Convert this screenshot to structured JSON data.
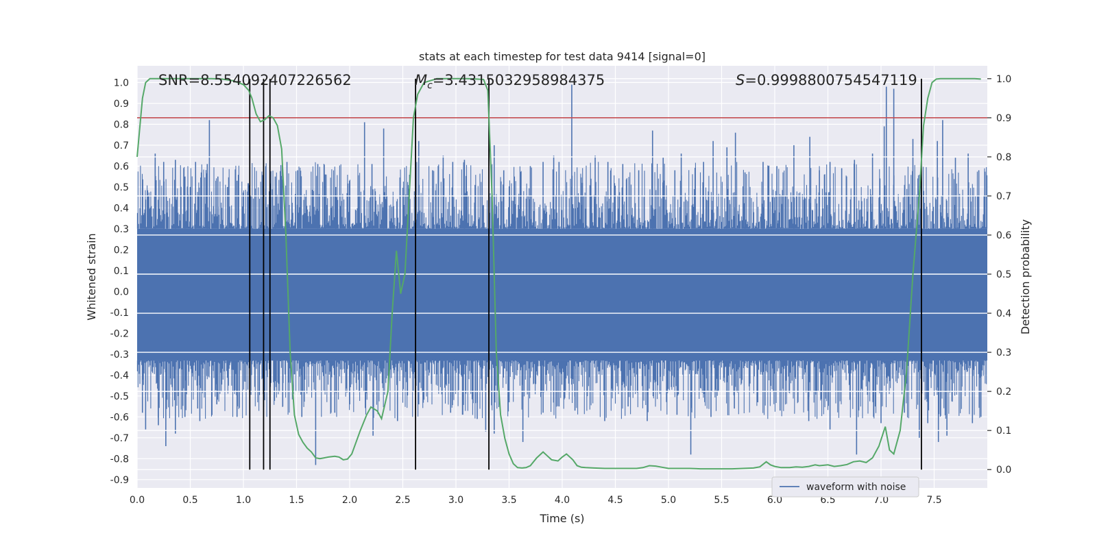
{
  "chart_data": {
    "type": "line",
    "title": "stats at each timestep for test data 9414 [signal=0]",
    "xlabel": "Time (s)",
    "ylabel": "Whitened strain",
    "y2label": "Detection probability",
    "xlim": [
      0.0,
      8.0
    ],
    "ylim": [
      -0.94,
      1.08
    ],
    "y2lim": [
      -0.047,
      1.033
    ],
    "xticks": [
      "0.0",
      "0.5",
      "1.0",
      "1.5",
      "2.0",
      "2.5",
      "3.0",
      "3.5",
      "4.0",
      "4.5",
      "5.0",
      "5.5",
      "6.0",
      "6.5",
      "7.0",
      "7.5"
    ],
    "yticks": [
      "1.0",
      "0.9",
      "0.8",
      "0.7",
      "0.6",
      "0.5",
      "0.4",
      "0.3",
      "0.2",
      "0.1",
      "0.0",
      "-0.1",
      "-0.2",
      "-0.3",
      "-0.4",
      "-0.5",
      "-0.6",
      "-0.7",
      "-0.8",
      "-0.9"
    ],
    "y2ticks": [
      "1.0",
      "0.9",
      "0.8",
      "0.7",
      "0.6",
      "0.5",
      "0.4",
      "0.3",
      "0.2",
      "0.1",
      "0.0"
    ],
    "annotations": {
      "snr": "SNR=8.554092407226562",
      "mc_symbol": "M",
      "mc_sub": "c",
      "mc_value": "=3.4315032958984375",
      "s_symbol": "S",
      "s_value": "=0.9998800754547119"
    },
    "threshold": 0.9,
    "vlines": [
      1.06,
      1.19,
      1.25,
      2.62,
      3.31,
      7.38
    ],
    "legend": {
      "label": "waveform with noise",
      "placement": "lower-right"
    },
    "series": [
      {
        "name": "waveform with noise",
        "color": "#4c72b0",
        "envelope_top": 0.3,
        "envelope_bottom": -0.33,
        "spikes": [
          [
            0.08,
            0.44
          ],
          [
            0.17,
            0.66
          ],
          [
            0.25,
            0.62
          ],
          [
            0.36,
            0.63
          ],
          [
            0.45,
            0.55
          ],
          [
            0.5,
            0.5
          ],
          [
            0.55,
            0.62
          ],
          [
            0.66,
            0.61
          ],
          [
            0.68,
            0.82
          ],
          [
            0.76,
            0.55
          ],
          [
            0.85,
            0.5
          ],
          [
            0.94,
            0.53
          ],
          [
            1.07,
            0.46
          ],
          [
            1.21,
            0.49
          ],
          [
            1.3,
            0.55
          ],
          [
            1.41,
            0.62
          ],
          [
            1.51,
            0.58
          ],
          [
            1.7,
            0.61
          ],
          [
            1.77,
            0.56
          ],
          [
            1.87,
            0.5
          ],
          [
            2.0,
            0.52
          ],
          [
            2.14,
            0.81
          ],
          [
            2.21,
            0.61
          ],
          [
            2.32,
            0.78
          ],
          [
            2.55,
            0.51
          ],
          [
            2.65,
            0.72
          ],
          [
            2.78,
            0.58
          ],
          [
            2.88,
            0.65
          ],
          [
            2.97,
            0.62
          ],
          [
            3.08,
            0.63
          ],
          [
            3.18,
            0.51
          ],
          [
            3.36,
            0.7
          ],
          [
            3.45,
            0.58
          ],
          [
            3.55,
            0.55
          ],
          [
            3.7,
            0.6
          ],
          [
            3.82,
            0.62
          ],
          [
            3.92,
            0.65
          ],
          [
            3.97,
            0.62
          ],
          [
            4.09,
            0.99
          ],
          [
            4.19,
            0.52
          ],
          [
            4.31,
            0.65
          ],
          [
            4.43,
            0.62
          ],
          [
            4.57,
            0.61
          ],
          [
            4.72,
            0.58
          ],
          [
            4.85,
            0.77
          ],
          [
            4.95,
            0.64
          ],
          [
            5.06,
            0.58
          ],
          [
            5.12,
            0.66
          ],
          [
            5.33,
            0.62
          ],
          [
            5.42,
            0.72
          ],
          [
            5.55,
            0.69
          ],
          [
            5.63,
            0.76
          ],
          [
            5.72,
            0.57
          ],
          [
            5.89,
            0.62
          ],
          [
            6.02,
            0.6
          ],
          [
            6.18,
            0.7
          ],
          [
            6.33,
            0.74
          ],
          [
            6.42,
            0.58
          ],
          [
            6.52,
            0.62
          ],
          [
            6.63,
            0.59
          ],
          [
            6.75,
            0.63
          ],
          [
            6.92,
            0.66
          ],
          [
            7.03,
            0.79
          ],
          [
            7.05,
            0.98
          ],
          [
            7.12,
            0.97
          ],
          [
            7.3,
            0.73
          ],
          [
            7.53,
            0.72
          ],
          [
            7.58,
            0.82
          ],
          [
            7.7,
            0.64
          ],
          [
            7.82,
            0.66
          ],
          [
            7.92,
            0.58
          ],
          [
            0.05,
            -0.58
          ],
          [
            0.08,
            -0.66
          ],
          [
            0.2,
            -0.64
          ],
          [
            0.27,
            -0.74
          ],
          [
            0.36,
            -0.68
          ],
          [
            0.45,
            -0.6
          ],
          [
            0.57,
            -0.56
          ],
          [
            0.59,
            -0.62
          ],
          [
            0.75,
            -0.54
          ],
          [
            0.94,
            -0.6
          ],
          [
            1.06,
            -0.45
          ],
          [
            1.2,
            -0.52
          ],
          [
            1.37,
            -0.55
          ],
          [
            1.55,
            -0.6
          ],
          [
            1.68,
            -0.83
          ],
          [
            1.86,
            -0.58
          ],
          [
            2.0,
            -0.54
          ],
          [
            2.22,
            -0.69
          ],
          [
            2.45,
            -0.62
          ],
          [
            2.65,
            -0.54
          ],
          [
            2.95,
            -0.58
          ],
          [
            3.2,
            -0.61
          ],
          [
            3.28,
            -0.67
          ],
          [
            3.36,
            -0.68
          ],
          [
            3.5,
            -0.53
          ],
          [
            3.63,
            -0.72
          ],
          [
            3.82,
            -0.58
          ],
          [
            3.97,
            -0.55
          ],
          [
            4.12,
            -0.57
          ],
          [
            4.4,
            -0.62
          ],
          [
            4.62,
            -0.55
          ],
          [
            4.8,
            -0.62
          ],
          [
            5.08,
            -0.59
          ],
          [
            5.21,
            -0.78
          ],
          [
            5.4,
            -0.6
          ],
          [
            5.62,
            -0.56
          ],
          [
            5.84,
            -0.53
          ],
          [
            6.05,
            -0.57
          ],
          [
            6.32,
            -0.62
          ],
          [
            6.52,
            -0.66
          ],
          [
            6.77,
            -0.78
          ],
          [
            7.0,
            -0.63
          ],
          [
            7.22,
            -0.58
          ],
          [
            7.36,
            -0.7
          ],
          [
            7.44,
            -0.63
          ],
          [
            7.54,
            -0.72
          ],
          [
            7.62,
            -0.69
          ],
          [
            7.86,
            -0.63
          ],
          [
            7.94,
            -0.6
          ]
        ]
      },
      {
        "name": "detection probability",
        "color": "#55a868",
        "axis": "right",
        "x": [
          0.0,
          0.05,
          0.08,
          0.12,
          0.2,
          0.3,
          0.4,
          0.5,
          0.6,
          0.7,
          0.8,
          0.9,
          1.0,
          1.05,
          1.08,
          1.12,
          1.16,
          1.2,
          1.24,
          1.28,
          1.32,
          1.36,
          1.4,
          1.44,
          1.48,
          1.52,
          1.56,
          1.6,
          1.64,
          1.68,
          1.72,
          1.76,
          1.8,
          1.86,
          1.9,
          1.94,
          1.98,
          2.02,
          2.06,
          2.1,
          2.16,
          2.2,
          2.26,
          2.3,
          2.36,
          2.4,
          2.44,
          2.48,
          2.52,
          2.56,
          2.6,
          2.64,
          2.7,
          2.76,
          2.82,
          2.9,
          3.0,
          3.1,
          3.2,
          3.26,
          3.3,
          3.34,
          3.38,
          3.42,
          3.46,
          3.5,
          3.54,
          3.58,
          3.62,
          3.66,
          3.7,
          3.76,
          3.82,
          3.86,
          3.9,
          3.96,
          4.0,
          4.04,
          4.1,
          4.14,
          4.18,
          4.22,
          4.3,
          4.4,
          4.5,
          4.6,
          4.7,
          4.76,
          4.82,
          4.88,
          4.94,
          5.0,
          5.1,
          5.2,
          5.3,
          5.4,
          5.5,
          5.6,
          5.7,
          5.8,
          5.86,
          5.92,
          5.96,
          6.0,
          6.06,
          6.14,
          6.2,
          6.26,
          6.32,
          6.38,
          6.42,
          6.5,
          6.56,
          6.62,
          6.68,
          6.74,
          6.8,
          6.86,
          6.92,
          6.98,
          7.04,
          7.08,
          7.12,
          7.18,
          7.24,
          7.3,
          7.36,
          7.4,
          7.44,
          7.48,
          7.52,
          7.56,
          7.62,
          7.7,
          7.8,
          7.88,
          7.94
        ],
        "y": [
          0.8,
          0.95,
          0.99,
          1.0,
          1.0,
          1.0,
          1.0,
          1.0,
          1.0,
          1.0,
          0.999,
          0.995,
          0.985,
          0.97,
          0.95,
          0.91,
          0.89,
          0.895,
          0.905,
          0.9,
          0.88,
          0.82,
          0.6,
          0.3,
          0.14,
          0.09,
          0.07,
          0.055,
          0.045,
          0.03,
          0.028,
          0.03,
          0.032,
          0.034,
          0.032,
          0.025,
          0.027,
          0.04,
          0.07,
          0.1,
          0.14,
          0.16,
          0.15,
          0.13,
          0.2,
          0.4,
          0.56,
          0.45,
          0.5,
          0.7,
          0.9,
          0.96,
          0.99,
          0.995,
          1.0,
          1.0,
          1.0,
          1.0,
          0.999,
          0.998,
          0.97,
          0.7,
          0.3,
          0.14,
          0.08,
          0.04,
          0.015,
          0.005,
          0.004,
          0.005,
          0.01,
          0.03,
          0.045,
          0.035,
          0.025,
          0.022,
          0.032,
          0.04,
          0.025,
          0.01,
          0.006,
          0.005,
          0.004,
          0.003,
          0.003,
          0.003,
          0.003,
          0.005,
          0.01,
          0.009,
          0.006,
          0.003,
          0.003,
          0.003,
          0.002,
          0.002,
          0.002,
          0.002,
          0.003,
          0.004,
          0.007,
          0.02,
          0.012,
          0.008,
          0.005,
          0.005,
          0.007,
          0.006,
          0.008,
          0.012,
          0.01,
          0.012,
          0.008,
          0.01,
          0.013,
          0.02,
          0.022,
          0.018,
          0.03,
          0.06,
          0.11,
          0.05,
          0.04,
          0.1,
          0.25,
          0.5,
          0.7,
          0.88,
          0.95,
          0.99,
          0.999,
          1.0,
          1.0,
          1.0,
          1.0,
          1.0,
          0.999
        ]
      }
    ],
    "colors": {
      "background": "#eaeaf2",
      "grid": "#ffffff",
      "threshold": "#c44e52",
      "vline": "#000000"
    }
  }
}
